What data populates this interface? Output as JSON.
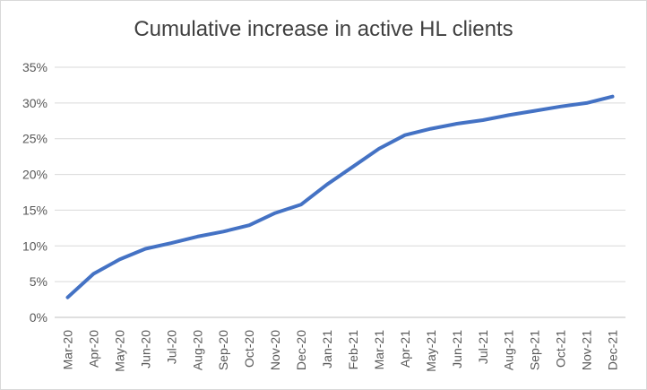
{
  "chart_data": {
    "type": "line",
    "title": "Cumulative increase in active HL clients",
    "xlabel": "",
    "ylabel": "",
    "categories": [
      "Mar-20",
      "Apr-20",
      "May-20",
      "Jun-20",
      "Jul-20",
      "Aug-20",
      "Sep-20",
      "Oct-20",
      "Nov-20",
      "Dec-20",
      "Jan-21",
      "Feb-21",
      "Mar-21",
      "Apr-21",
      "May-21",
      "Jun-21",
      "Jul-21",
      "Aug-21",
      "Sep-21",
      "Oct-21",
      "Nov-21",
      "Dec-21"
    ],
    "series": [
      {
        "values": [
          2.8,
          6.1,
          8.1,
          9.6,
          10.4,
          11.3,
          12.0,
          12.9,
          14.6,
          15.8,
          18.6,
          21.1,
          23.6,
          25.5,
          26.4,
          27.1,
          27.6,
          28.3,
          28.9,
          29.5,
          30.0,
          30.9
        ],
        "color": "#4472c4"
      }
    ],
    "ylim": [
      0,
      35
    ],
    "yticks": [
      0,
      5,
      10,
      15,
      20,
      25,
      30,
      35
    ],
    "ytick_labels": [
      "0%",
      "5%",
      "10%",
      "15%",
      "20%",
      "25%",
      "30%",
      "35%"
    ],
    "grid": true,
    "legend": "none"
  }
}
